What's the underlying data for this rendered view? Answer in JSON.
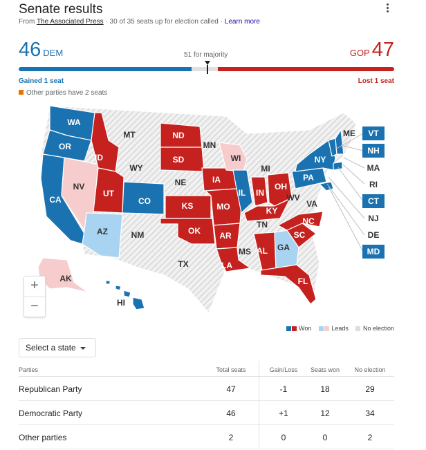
{
  "header": {
    "title": "Senate results",
    "source_prefix": "From ",
    "source_name": "The Associated Press",
    "source_suffix": " · 30 of 35 seats up for election called · ",
    "learn_more": "Learn more"
  },
  "tally": {
    "dem_seats": "46",
    "dem_label": "DEM",
    "gop_seats": "47",
    "gop_label": "GOP",
    "majority_label": "51 for majority",
    "total_seats": 100,
    "dem_gain": "Gained 1 seat",
    "gop_loss": "Lost 1 seat",
    "other_note": "Other parties have 2 seats"
  },
  "colors": {
    "dem_won": "#1a73b0",
    "gop_won": "#c5221f",
    "dem_leads": "#a8d4f2",
    "gop_leads": "#f6cccc",
    "no_election": "#e8e8e8",
    "other": "#e37400"
  },
  "map": {
    "state_labels": [
      "WA",
      "OR",
      "CA",
      "NV",
      "ID",
      "MT",
      "WY",
      "UT",
      "CO",
      "AZ",
      "NM",
      "ND",
      "SD",
      "NE",
      "KS",
      "OK",
      "TX",
      "MN",
      "IA",
      "MO",
      "AR",
      "LA",
      "WI",
      "IL",
      "MI",
      "IN",
      "OH",
      "KY",
      "TN",
      "MS",
      "AL",
      "GA",
      "FL",
      "SC",
      "NC",
      "VA",
      "WV",
      "PA",
      "NY",
      "ME",
      "MA",
      "RI",
      "NJ",
      "DE",
      "AK",
      "HI"
    ],
    "callouts": [
      "VT",
      "NH",
      "MA",
      "RI",
      "CT",
      "NJ",
      "DE",
      "MD"
    ],
    "zoom_in": "+",
    "zoom_out": "−"
  },
  "legend": {
    "won": "Won",
    "leads": "Leads",
    "no_election": "No election"
  },
  "state_select": {
    "label": "Select a state"
  },
  "table": {
    "headers": [
      "Parties",
      "Total seats",
      "Gain/Loss",
      "Seats won",
      "No election"
    ],
    "rows": [
      {
        "party": "Republican Party",
        "total": "47",
        "gain": "-1",
        "won": "18",
        "none": "29"
      },
      {
        "party": "Democratic Party",
        "total": "46",
        "gain": "+1",
        "won": "12",
        "none": "34"
      },
      {
        "party": "Other parties",
        "total": "2",
        "gain": "0",
        "won": "0",
        "none": "2"
      }
    ]
  }
}
